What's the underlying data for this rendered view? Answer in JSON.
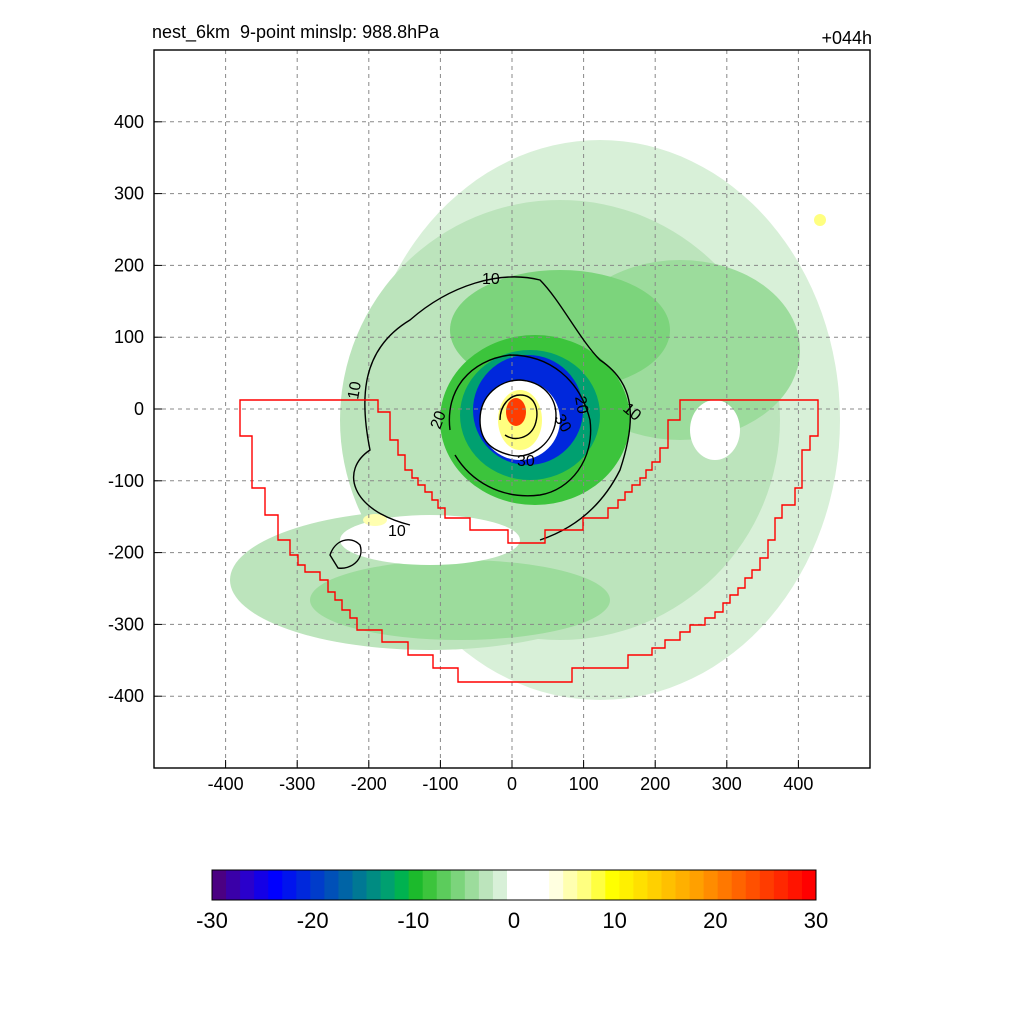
{
  "header": {
    "left_title": "nest_6km  9-point minslp: 988.8hPa",
    "right_title": "+044h"
  },
  "chart_data": {
    "type": "heatmap",
    "title": "nest_6km  9-point minslp: 988.8hPa",
    "forecast_hour": "+044h",
    "xlim": [
      -500,
      500
    ],
    "ylim": [
      -500,
      500
    ],
    "x_ticks": [
      -400,
      -300,
      -200,
      -100,
      0,
      100,
      200,
      300,
      400
    ],
    "y_ticks": [
      400,
      300,
      200,
      100,
      0,
      -100,
      -200,
      -300,
      -400
    ],
    "x_tick_labels": [
      "-400",
      "-300",
      "-200",
      "-100",
      "0",
      "100",
      "200",
      "300",
      "400"
    ],
    "y_tick_labels": [
      "400",
      "300",
      "200",
      "100",
      "0",
      "-100",
      "-200",
      "-300",
      "-400"
    ],
    "grid": true,
    "colorbar": {
      "min": -30,
      "max": 30,
      "tick_values": [
        -30,
        -20,
        -10,
        0,
        10,
        20,
        30
      ],
      "tick_labels": [
        "-30",
        "-20",
        "-10",
        "0",
        "10",
        "20",
        "30"
      ],
      "colors": [
        "#4b0082",
        "#3a00a8",
        "#2a00cc",
        "#1400e6",
        "#0000ff",
        "#0014ee",
        "#0028dc",
        "#003cca",
        "#0050b8",
        "#0064a6",
        "#007894",
        "#008c82",
        "#00a070",
        "#00b250",
        "#1cba2c",
        "#3cc43c",
        "#5ccc5c",
        "#7cd47c",
        "#9cdc9c",
        "#bce4bc",
        "#d8f0d8",
        "#ffffff",
        "#ffffff",
        "#ffffff",
        "#ffffe0",
        "#ffffb0",
        "#ffff80",
        "#ffff40",
        "#ffff00",
        "#fff000",
        "#ffe000",
        "#ffd000",
        "#ffc000",
        "#ffb000",
        "#ffa000",
        "#ff8c00",
        "#ff7800",
        "#ff6400",
        "#ff5000",
        "#ff3c00",
        "#ff2800",
        "#ff1400",
        "#ff0000"
      ]
    },
    "contour_labels": [
      "10",
      "10",
      "10",
      "10",
      "20",
      "20",
      "30",
      "30"
    ],
    "boundary_color": "#ff0000"
  }
}
